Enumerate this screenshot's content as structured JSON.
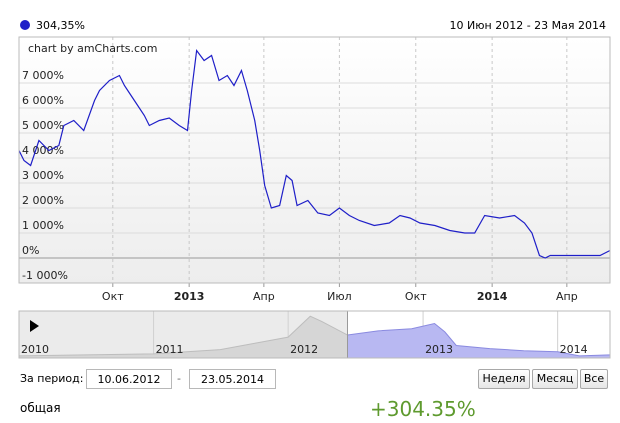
{
  "chart_data": [
    {
      "type": "line",
      "color": "#1f1fc8",
      "grid": true,
      "x": [
        "2012-06-10",
        "2012-06-16",
        "2012-06-24",
        "2012-07-04",
        "2012-07-16",
        "2012-07-28",
        "2012-08-03",
        "2012-08-15",
        "2012-08-27",
        "2012-09-09",
        "2012-09-15",
        "2012-09-27",
        "2012-10-09",
        "2012-10-15",
        "2012-10-27",
        "2012-11-08",
        "2012-11-14",
        "2012-11-26",
        "2012-12-08",
        "2012-12-20",
        "2012-12-30",
        "2013-01-04",
        "2013-01-10",
        "2013-01-19",
        "2013-01-28",
        "2013-02-06",
        "2013-02-16",
        "2013-02-24",
        "2013-03-05",
        "2013-03-12",
        "2013-03-21",
        "2013-03-27",
        "2013-04-02",
        "2013-04-10",
        "2013-04-20",
        "2013-04-28",
        "2013-05-05",
        "2013-05-11",
        "2013-05-24",
        "2013-06-05",
        "2013-06-19",
        "2013-07-01",
        "2013-07-13",
        "2013-07-25",
        "2013-08-12",
        "2013-08-30",
        "2013-09-12",
        "2013-09-24",
        "2013-10-06",
        "2013-10-24",
        "2013-11-11",
        "2013-11-29",
        "2013-12-11",
        "2013-12-23",
        "2014-01-10",
        "2014-01-28",
        "2014-02-09",
        "2014-02-18",
        "2014-02-27",
        "2014-03-06",
        "2014-03-12",
        "2014-03-24",
        "2014-04-17",
        "2014-05-11",
        "2014-05-23"
      ],
      "values": [
        4300,
        3900,
        3700,
        4700,
        4300,
        4500,
        5300,
        5500,
        5100,
        6300,
        6700,
        7100,
        7300,
        6900,
        6300,
        5700,
        5300,
        5500,
        5600,
        5300,
        5100,
        6700,
        8300,
        7900,
        8100,
        7100,
        7300,
        6900,
        7500,
        6700,
        5500,
        4300,
        2900,
        2000,
        2100,
        3300,
        3100,
        2100,
        2300,
        1800,
        1700,
        2000,
        1700,
        1500,
        1300,
        1400,
        1700,
        1600,
        1400,
        1300,
        1100,
        1000,
        1000,
        1700,
        1600,
        1700,
        1400,
        1000,
        100,
        0,
        100,
        100,
        100,
        100,
        300
      ],
      "xlim": [
        "2012-06-10",
        "2014-05-23"
      ],
      "ylim": [
        -1000,
        8840
      ],
      "yticks": [
        {
          "value": -1000,
          "label": "-1 000%"
        },
        {
          "value": 0,
          "label": "0%"
        },
        {
          "value": 1000,
          "label": "1 000%"
        },
        {
          "value": 2000,
          "label": "2 000%"
        },
        {
          "value": 3000,
          "label": "3 000%"
        },
        {
          "value": 4000,
          "label": "4 000%"
        },
        {
          "value": 5000,
          "label": "5 000%"
        },
        {
          "value": 6000,
          "label": "6 000%"
        },
        {
          "value": 7000,
          "label": "7 000%"
        }
      ],
      "xticks": [
        {
          "value": "2012-10-01",
          "label": "Окт"
        },
        {
          "value": "2013-01-01",
          "label": "2013"
        },
        {
          "value": "2013-04-01",
          "label": "Апр"
        },
        {
          "value": "2013-07-01",
          "label": "Июл"
        },
        {
          "value": "2013-10-01",
          "label": "Окт"
        },
        {
          "value": "2014-01-01",
          "label": "2014"
        },
        {
          "value": "2014-04-01",
          "label": "Апр"
        }
      ]
    },
    {
      "type": "area",
      "color": "#b8b8f2",
      "color_outside": "#d6d6d6",
      "x": [
        "2010-01-01",
        "2010-07-01",
        "2011-01-01",
        "2011-04-01",
        "2011-07-01",
        "2011-10-01",
        "2012-01-01",
        "2012-03-01",
        "2012-04-01",
        "2012-06-10",
        "2012-09-01",
        "2012-12-01",
        "2013-02-01",
        "2013-03-01",
        "2013-04-01",
        "2013-07-01",
        "2013-10-01",
        "2014-01-01",
        "2014-03-01",
        "2014-05-23"
      ],
      "values": [
        2,
        3,
        4,
        6,
        8,
        14,
        20,
        40,
        35,
        22,
        26,
        28,
        33,
        25,
        12,
        9,
        7,
        6,
        2,
        3
      ],
      "xlim": [
        "2010-01-01",
        "2014-05-23"
      ],
      "ylim": [
        0,
        45
      ],
      "xticks": [
        {
          "value": "2010-01-01",
          "label": "2010"
        },
        {
          "value": "2011-01-01",
          "label": "2011"
        },
        {
          "value": "2012-01-01",
          "label": "2012"
        },
        {
          "value": "2013-01-01",
          "label": "2013"
        },
        {
          "value": "2014-01-01",
          "label": "2014"
        }
      ]
    }
  ],
  "legend": {
    "value": "304,35%",
    "period": "10 Июн 2012 - 23 Мая 2014"
  },
  "credit": "chart by amCharts.com",
  "controls": {
    "period_label": "За период:",
    "from": "10.06.2012",
    "separator": "-",
    "to": "23.05.2014",
    "buttons": [
      "Неделя",
      "Месяц",
      "Все"
    ]
  },
  "summary": {
    "label": "общая",
    "value": "+304.35%"
  }
}
